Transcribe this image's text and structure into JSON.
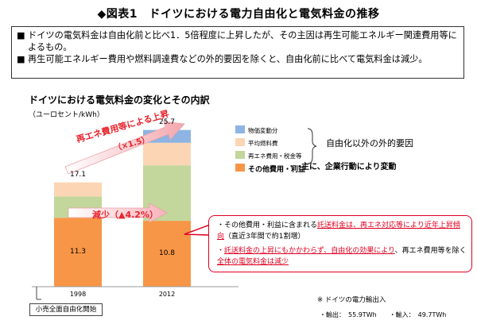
{
  "title": "◆図表1　ドイツにおける電力自由化と電気料金の推移",
  "summary": {
    "bullet": "■",
    "line1": "ドイツの電気料金は自由化前と比べ1．5倍程度に上昇したが、その主因は再生可能エネルギー関連費用等によるもの。",
    "line2": "再生可能エネルギー費用や燃料調達費などの外的要因を除くと、自由化前に比べて電気料金は減少。"
  },
  "chart_data": {
    "type": "bar",
    "stacked": true,
    "title": "ドイツにおける電気料金の変化とその内訳",
    "ylabel": "（ユーロセント/kWh）",
    "categories": [
      "1998",
      "2012"
    ],
    "totals": [
      "17.1",
      "25.7"
    ],
    "ylim": [
      0,
      28
    ],
    "series": [
      {
        "name": "その他費用・利益",
        "values": [
          11.3,
          10.8
        ],
        "color": "#f79646",
        "labels": [
          "11.3",
          "10.8"
        ]
      },
      {
        "name": "再エネ費用・税金等",
        "values": [
          3.5,
          9.1
        ],
        "color": "#c3d69b"
      },
      {
        "name": "平均燃料費",
        "values": [
          2.3,
          3.7
        ],
        "color": "#fcd5b5"
      },
      {
        "name": "物価変動分",
        "values": [
          0,
          2.1
        ],
        "color": "#8db4e2"
      }
    ],
    "legend_position": "right",
    "legend_order": [
      3,
      2,
      1,
      0
    ],
    "annotations": {
      "external_factors": "自由化以外の外的要因",
      "main_factor": "･･･主に、企業行動により変動",
      "rise_label": "再エネ費用等による上昇",
      "rise_ratio": "（×1.5）",
      "decrease_label": "減少（▲4.2%）"
    }
  },
  "callout": {
    "b1_prefix": "・その他費用・利益に含まれる",
    "b1_red": "託送料金は、再エネ対応等により近年上昇傾向",
    "b1_suffix": "（直近3年間で約1割増）",
    "b2_red": "託送料金の上昇にもかかわらず、自由化の効果により",
    "b2_mid": "、再エネ費用等を除く",
    "b2_red2": "全体の電気料金は減少",
    "bullet": "・"
  },
  "footer": {
    "liberalization": "小売全面自由化開始",
    "note": "※ ドイツの電力輸出入",
    "export": "・輸出：　55.9TWh",
    "import": "・輸入：　49.7TWh"
  }
}
